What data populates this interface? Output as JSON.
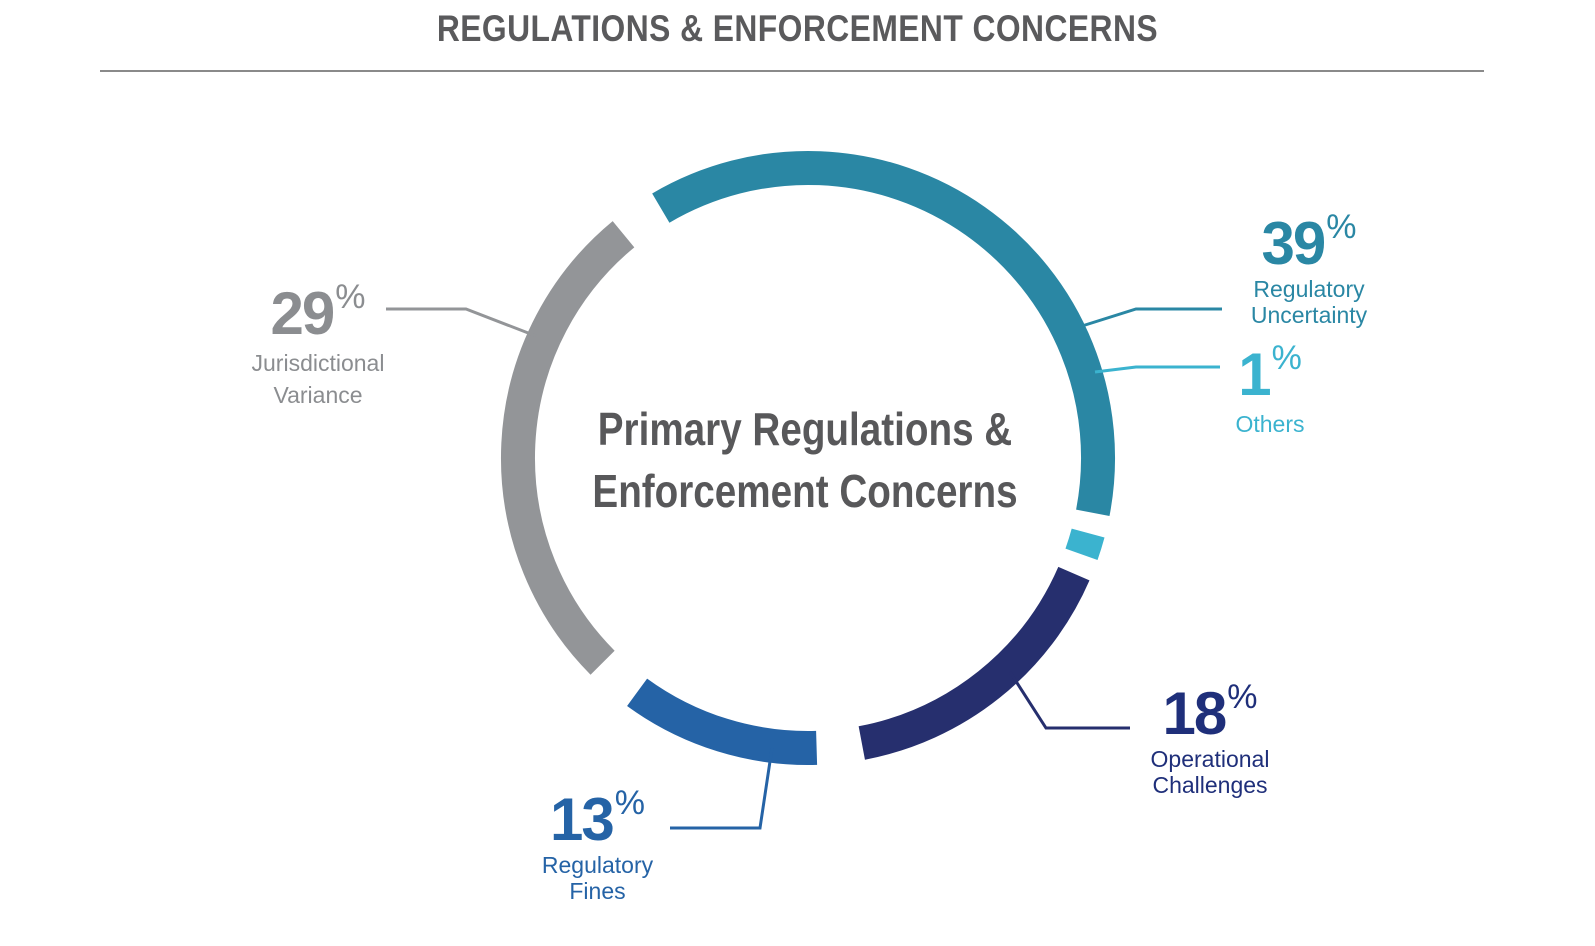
{
  "header": {
    "title": "REGULATIONS & ENFORCEMENT CONCERNS"
  },
  "chart_data": {
    "type": "pie",
    "style": "donut-ring",
    "center_title_lines": [
      "Primary Regulations &",
      "Enforcement Concerns"
    ],
    "percent_sign": "%",
    "slices": [
      {
        "value": 39,
        "label_lines": [
          "Regulatory",
          "Uncertainty"
        ],
        "color": "#2a87a4"
      },
      {
        "value": 1,
        "label_lines": [
          "Others"
        ],
        "color": "#3bb3cf"
      },
      {
        "value": 18,
        "label_lines": [
          "Operational",
          "Challenges"
        ],
        "color": "#262f6e"
      },
      {
        "value": 13,
        "label_lines": [
          "Regulatory",
          "Fines"
        ],
        "color": "#2563a6"
      },
      {
        "value": 29,
        "label_lines": [
          "Jurisdictional",
          "Variance"
        ],
        "color": "#939598"
      }
    ]
  }
}
